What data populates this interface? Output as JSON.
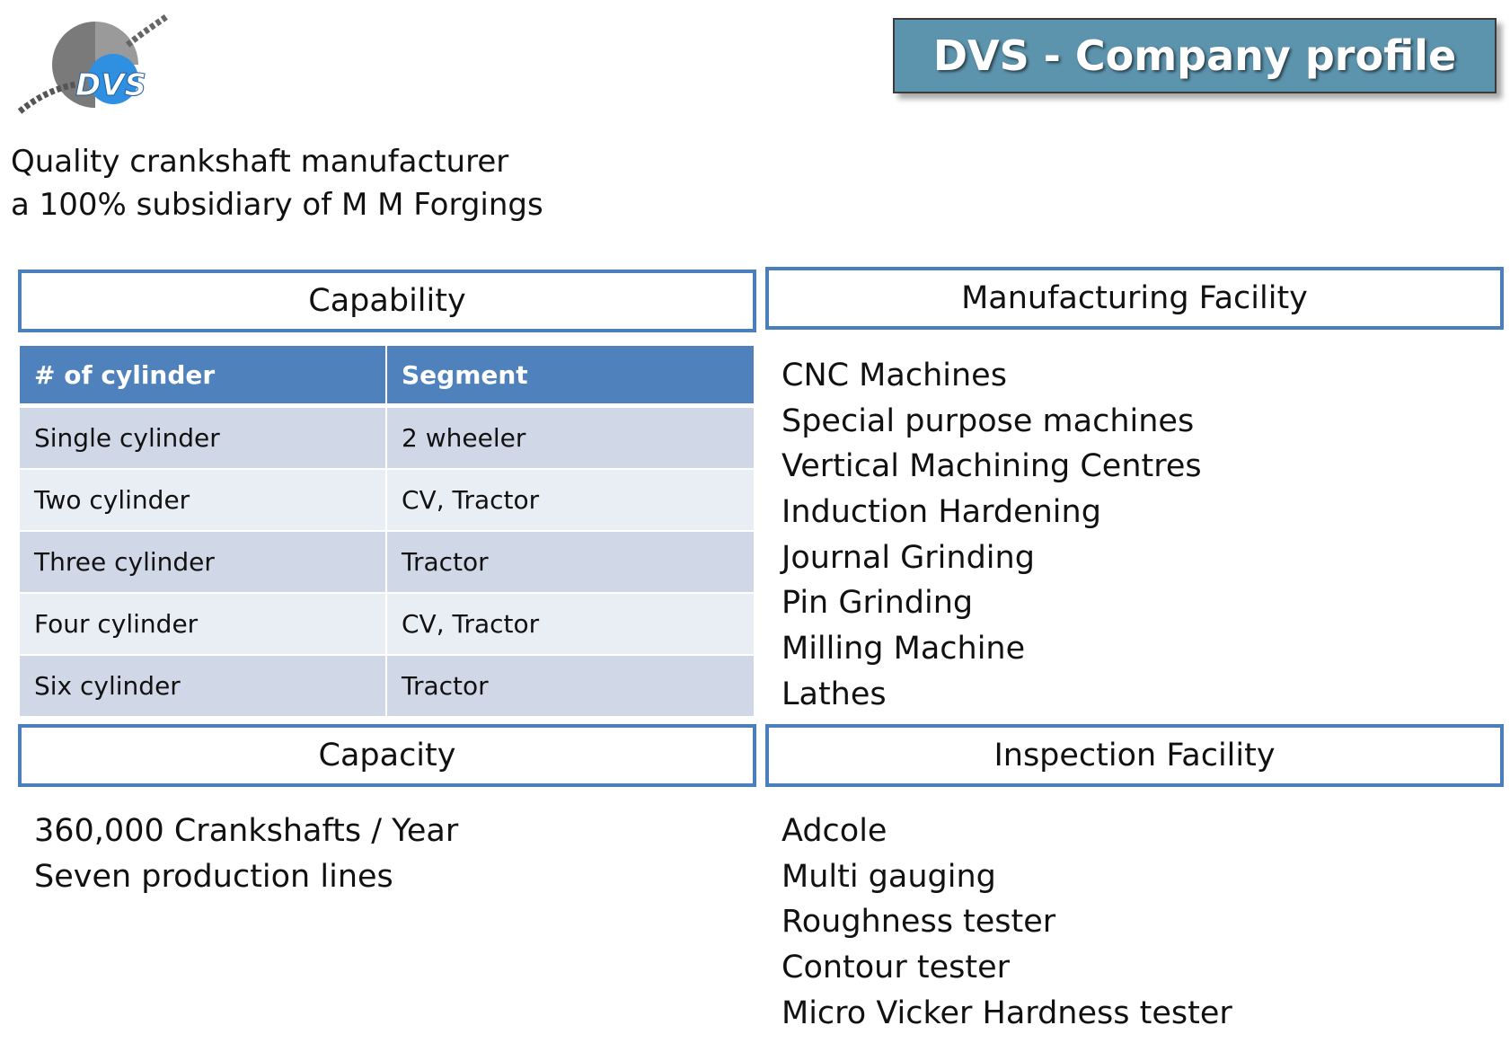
{
  "logo": {
    "text": "DVS"
  },
  "title": "DVS - Company profile",
  "tagline": [
    "Quality crankshaft manufacturer",
    "a 100% subsidiary of M M Forgings"
  ],
  "capability": {
    "heading": "Capability",
    "columns": [
      "# of cylinder",
      "Segment"
    ],
    "rows": [
      [
        "Single cylinder",
        "2 wheeler"
      ],
      [
        "Two cylinder",
        "CV, Tractor"
      ],
      [
        "Three cylinder",
        "Tractor"
      ],
      [
        "Four cylinder",
        "CV, Tractor"
      ],
      [
        "Six cylinder",
        "Tractor"
      ]
    ]
  },
  "manufacturing": {
    "heading": "Manufacturing Facility",
    "items": [
      "CNC Machines",
      "Special purpose machines",
      "Vertical Machining Centres",
      "Induction Hardening",
      "Journal Grinding",
      "Pin Grinding",
      "Milling Machine",
      "Lathes"
    ]
  },
  "capacity": {
    "heading": "Capacity",
    "items": [
      "360,000 Crankshafts / Year",
      "Seven production lines"
    ]
  },
  "inspection": {
    "heading": "Inspection Facility",
    "items": [
      "Adcole",
      "Multi gauging",
      "Roughness tester",
      "Contour tester",
      "Micro Vicker Hardness tester"
    ]
  },
  "colors": {
    "title_bg": "#5d94ad",
    "section_border": "#4a7fbc",
    "table_header": "#4f81bd",
    "row_dark": "#d0d8e8",
    "row_light": "#e9edf4"
  }
}
